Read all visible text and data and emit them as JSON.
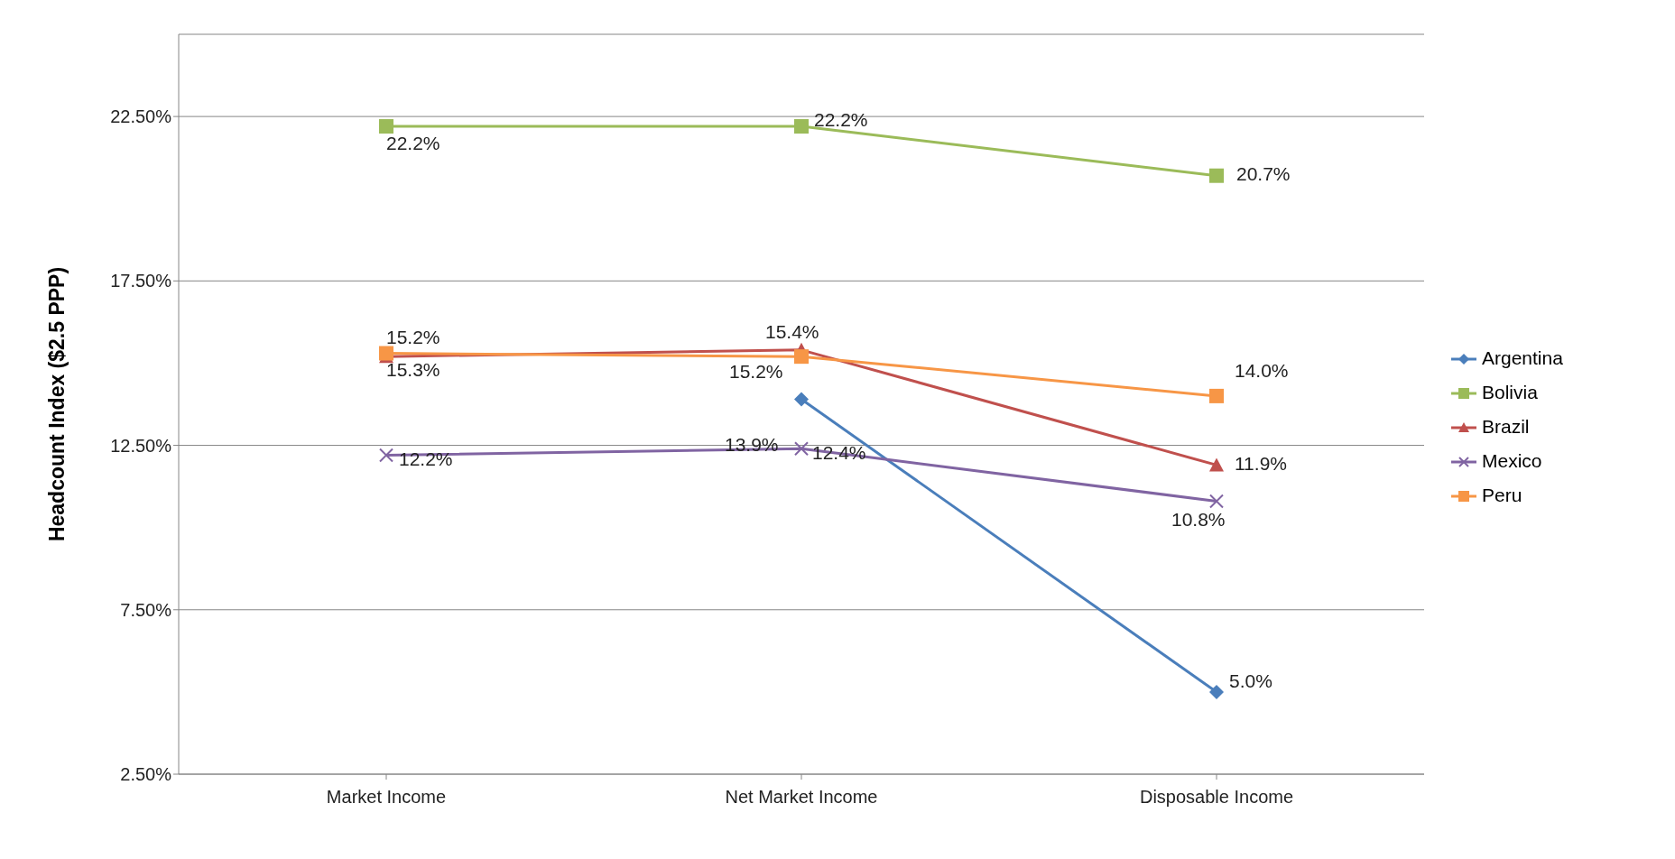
{
  "chart_data": {
    "type": "line",
    "ylabel": "Headcount Index ($2.5 PPP)",
    "categories": [
      "Market Income",
      "Net Market Income",
      "Disposable Income"
    ],
    "series": [
      {
        "name": "Argentina",
        "color": "#4a7ebb",
        "marker": "diamond",
        "values": [
          null,
          13.9,
          5.0
        ],
        "value_labels": [
          null,
          "13.9%",
          "5.0%"
        ]
      },
      {
        "name": "Bolivia",
        "color": "#9bbb59",
        "marker": "square",
        "values": [
          22.2,
          22.2,
          20.7
        ],
        "value_labels": [
          "22.2%",
          "22.2%",
          "20.7%"
        ]
      },
      {
        "name": "Brazil",
        "color": "#c0504d",
        "marker": "triangle",
        "values": [
          15.2,
          15.4,
          11.9
        ],
        "value_labels": [
          "15.2%",
          "15.4%",
          "11.9%"
        ]
      },
      {
        "name": "Mexico",
        "color": "#8064a2",
        "marker": "cross",
        "values": [
          12.2,
          12.4,
          10.8
        ],
        "value_labels": [
          "12.2%",
          "12.4%",
          "10.8%"
        ]
      },
      {
        "name": "Peru",
        "color": "#f79646",
        "marker": "square",
        "values": [
          15.3,
          15.2,
          14.0
        ],
        "value_labels": [
          "15.3%",
          "15.2%",
          "14.0%"
        ]
      }
    ],
    "ylim": [
      2.5,
      25
    ],
    "yticks": [
      {
        "value": 2.5,
        "label": "2.50%"
      },
      {
        "value": 7.5,
        "label": "7.50%"
      },
      {
        "value": 12.5,
        "label": "12.50%"
      },
      {
        "value": 17.5,
        "label": "17.50%"
      },
      {
        "value": 22.5,
        "label": "22.50%"
      }
    ],
    "grid": "y",
    "legend": "right"
  }
}
